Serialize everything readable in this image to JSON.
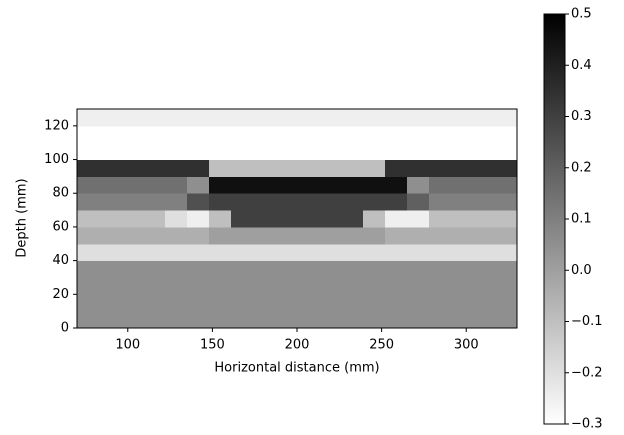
{
  "chart_data": {
    "type": "heatmap",
    "xlabel": "Horizontal distance (mm)",
    "ylabel": "Depth (mm)",
    "x": [
      70,
      83,
      96,
      109,
      122,
      135,
      148,
      161,
      174,
      187,
      200,
      213,
      226,
      239,
      252,
      265,
      278,
      291,
      304,
      317,
      330
    ],
    "y": [
      0,
      10,
      20,
      30,
      40,
      50,
      60,
      70,
      80,
      90,
      100,
      110,
      120,
      130
    ],
    "z": [
      [
        0.05,
        0.05,
        0.05,
        0.05,
        0.05,
        0.05,
        0.05,
        0.05,
        0.05,
        0.05,
        0.05,
        0.05,
        0.05,
        0.05,
        0.05,
        0.05,
        0.05,
        0.05,
        0.05,
        0.05
      ],
      [
        0.05,
        0.05,
        0.05,
        0.05,
        0.05,
        0.05,
        0.05,
        0.05,
        0.05,
        0.05,
        0.05,
        0.05,
        0.05,
        0.05,
        0.05,
        0.05,
        0.05,
        0.05,
        0.05,
        0.05
      ],
      [
        0.05,
        0.05,
        0.05,
        0.05,
        0.05,
        0.05,
        0.05,
        0.05,
        0.05,
        0.05,
        0.05,
        0.05,
        0.05,
        0.05,
        0.05,
        0.05,
        0.05,
        0.05,
        0.05,
        0.05
      ],
      [
        0.05,
        0.05,
        0.05,
        0.05,
        0.05,
        0.05,
        0.05,
        0.05,
        0.05,
        0.05,
        0.05,
        0.05,
        0.05,
        0.05,
        0.05,
        0.05,
        0.05,
        0.05,
        0.05,
        0.05
      ],
      [
        -0.2,
        -0.2,
        -0.2,
        -0.2,
        -0.2,
        -0.2,
        -0.2,
        -0.2,
        -0.2,
        -0.2,
        -0.2,
        -0.2,
        -0.2,
        -0.2,
        -0.2,
        -0.2,
        -0.2,
        -0.2,
        -0.2,
        -0.2
      ],
      [
        -0.05,
        -0.05,
        -0.05,
        -0.05,
        -0.05,
        -0.05,
        0,
        0,
        0,
        0,
        0,
        0,
        0,
        0,
        -0.05,
        -0.05,
        -0.05,
        -0.05,
        -0.05,
        -0.05
      ],
      [
        -0.1,
        -0.1,
        -0.1,
        -0.1,
        -0.2,
        -0.25,
        -0.1,
        0.3,
        0.3,
        0.3,
        0.3,
        0.3,
        0.3,
        -0.1,
        -0.25,
        -0.25,
        -0.1,
        -0.1,
        -0.1,
        -0.1
      ],
      [
        0.1,
        0.1,
        0.1,
        0.1,
        0.1,
        0.25,
        0.3,
        0.3,
        0.3,
        0.3,
        0.3,
        0.3,
        0.3,
        0.3,
        0.3,
        0.2,
        0.1,
        0.1,
        0.1,
        0.1
      ],
      [
        0.15,
        0.15,
        0.15,
        0.15,
        0.15,
        0.05,
        0.45,
        0.45,
        0.45,
        0.45,
        0.45,
        0.45,
        0.45,
        0.45,
        0.45,
        0.05,
        0.15,
        0.15,
        0.15,
        0.15
      ],
      [
        0.35,
        0.35,
        0.35,
        0.35,
        0.35,
        0.35,
        -0.1,
        -0.1,
        -0.1,
        -0.1,
        -0.1,
        -0.1,
        -0.1,
        -0.1,
        0.35,
        0.35,
        0.35,
        0.35,
        0.35,
        0.35
      ],
      [
        -0.3,
        -0.3,
        -0.3,
        -0.3,
        -0.3,
        -0.3,
        -0.3,
        -0.3,
        -0.3,
        -0.3,
        -0.3,
        -0.3,
        -0.3,
        -0.3,
        -0.3,
        -0.3,
        -0.3,
        -0.3,
        -0.3,
        -0.3
      ],
      [
        -0.3,
        -0.3,
        -0.3,
        -0.3,
        -0.3,
        -0.3,
        -0.3,
        -0.3,
        -0.3,
        -0.3,
        -0.3,
        -0.3,
        -0.3,
        -0.3,
        -0.3,
        -0.3,
        -0.3,
        -0.3,
        -0.3,
        -0.3
      ],
      [
        -0.25,
        -0.25,
        -0.25,
        -0.25,
        -0.25,
        -0.25,
        -0.25,
        -0.25,
        -0.25,
        -0.25,
        -0.25,
        -0.25,
        -0.25,
        -0.25,
        -0.25,
        -0.25,
        -0.25,
        -0.25,
        -0.25,
        -0.25
      ]
    ],
    "colormap": "gray_r",
    "xlim": [
      70,
      330
    ],
    "xticks": [
      100,
      150,
      200,
      250,
      300
    ],
    "ylim": [
      0,
      130
    ],
    "yticks": [
      0,
      20,
      40,
      60,
      80,
      100,
      120
    ],
    "clim": [
      -0.3,
      0.5
    ],
    "cticks": [
      {
        "value": -0.3,
        "label": "−0.3"
      },
      {
        "value": -0.2,
        "label": "−0.2"
      },
      {
        "value": -0.1,
        "label": "−0.1"
      },
      {
        "value": 0,
        "label": "0.0"
      },
      0.1,
      0.2,
      0.3,
      0.4,
      0.5
    ]
  }
}
